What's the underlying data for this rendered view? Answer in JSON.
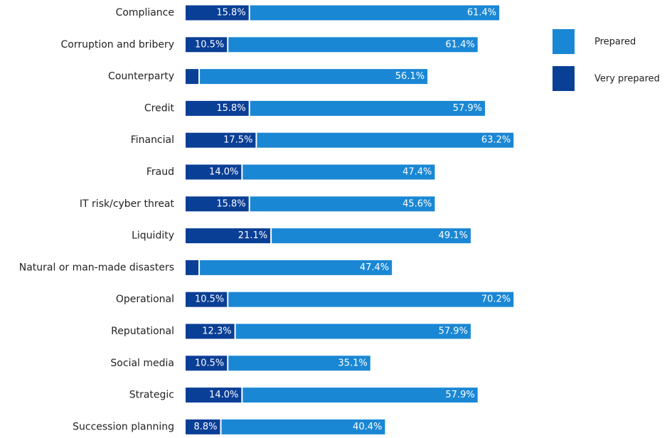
{
  "chart_data": {
    "type": "stacked-barh",
    "categories": [
      "Compliance",
      "Corruption and bribery",
      "Counterparty",
      "Credit",
      "Financial",
      "Fraud",
      "IT risk/cyber threat",
      "Liquidity",
      "Natural or man-made disasters",
      "Operational",
      "Reputational",
      "Social media",
      "Strategic",
      "Succession planning"
    ],
    "series": [
      {
        "name": "Very prepared",
        "color": "#0a3f96",
        "values": [
          15.8,
          10.5,
          3.5,
          15.8,
          17.5,
          14.0,
          15.8,
          21.1,
          3.5,
          10.5,
          12.3,
          10.5,
          14.0,
          8.8
        ],
        "value_labels": [
          "15.8%",
          "10.5%",
          "3.5%",
          "15.8%",
          "17.5%",
          "14.0%",
          "15.8%",
          "21.1%",
          "3.5%",
          "10.5%",
          "12.3%",
          "10.5%",
          "14.0%",
          "8.8%"
        ]
      },
      {
        "name": "Prepared",
        "color": "#1a87d4",
        "values": [
          61.4,
          61.4,
          56.1,
          57.9,
          63.2,
          47.4,
          45.6,
          49.1,
          47.4,
          70.2,
          57.9,
          35.1,
          57.9,
          40.4
        ],
        "value_labels": [
          "61.4%",
          "61.4%",
          "56.1%",
          "57.9%",
          "63.2%",
          "47.4%",
          "45.6%",
          "49.1%",
          "47.4%",
          "70.2%",
          "57.9%",
          "35.1%",
          "57.9%",
          "40.4%"
        ]
      }
    ],
    "legend": "right"
  }
}
